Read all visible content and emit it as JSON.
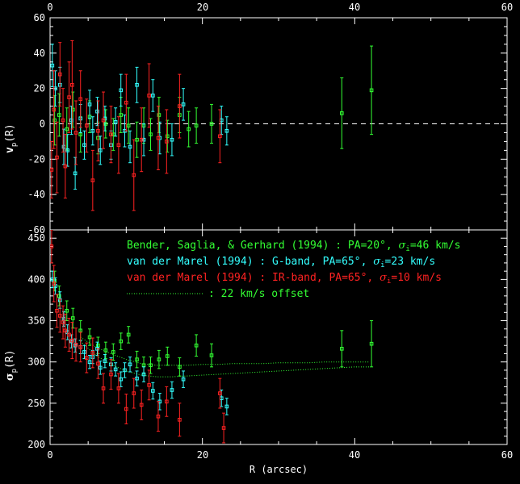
{
  "xlabel": "R (arcsec)",
  "top_xticks": [
    "0",
    "20",
    "40",
    "60"
  ],
  "bottom_xticks": [
    "0",
    "20",
    "40",
    "60"
  ],
  "colors": {
    "green": "#33ff33",
    "cyan": "#33ffff",
    "red": "#ff2222",
    "frame": "#ffffff"
  },
  "chart_data": [
    {
      "type": "scatter",
      "name": "velocity",
      "ylabel_main": "v",
      "ylabel_sub": "p",
      "ylabel_tail": "(R)",
      "xlim": [
        0,
        60
      ],
      "ylim": [
        -60,
        60
      ],
      "yticks": [
        "-60",
        "-40",
        "-20",
        "0",
        "20",
        "40",
        "60"
      ],
      "zero_line": true,
      "series": [
        {
          "color": "green",
          "points": [
            {
              "x": 0.6,
              "y": 2,
              "e": 14
            },
            {
              "x": 1.2,
              "y": 5,
              "e": 12
            },
            {
              "x": 2.2,
              "y": -3,
              "e": 12
            },
            {
              "x": 3.0,
              "y": 8,
              "e": 10
            },
            {
              "x": 4.0,
              "y": -6,
              "e": 10
            },
            {
              "x": 5.2,
              "y": 4,
              "e": 9
            },
            {
              "x": 6.3,
              "y": -8,
              "e": 9
            },
            {
              "x": 7.3,
              "y": 0,
              "e": 8
            },
            {
              "x": 8.3,
              "y": -6,
              "e": 9
            },
            {
              "x": 9.3,
              "y": 5,
              "e": 10
            },
            {
              "x": 10.3,
              "y": -1,
              "e": 10
            },
            {
              "x": 11.4,
              "y": -9,
              "e": 10
            },
            {
              "x": 12.3,
              "y": -1,
              "e": 10
            },
            {
              "x": 13.2,
              "y": -6,
              "e": 9
            },
            {
              "x": 14.3,
              "y": 5,
              "e": 10
            },
            {
              "x": 15.4,
              "y": -7,
              "e": 9
            },
            {
              "x": 17.0,
              "y": 5,
              "e": 10
            },
            {
              "x": 18.2,
              "y": -3,
              "e": 10
            },
            {
              "x": 19.2,
              "y": -1,
              "e": 10
            },
            {
              "x": 21.2,
              "y": 0,
              "e": 11
            },
            {
              "x": 38.3,
              "y": 6,
              "e": 20
            },
            {
              "x": 42.2,
              "y": 19,
              "e": 25
            }
          ]
        },
        {
          "color": "cyan",
          "points": [
            {
              "x": 0.3,
              "y": 33,
              "e": 12
            },
            {
              "x": 0.7,
              "y": 20,
              "e": 10
            },
            {
              "x": 1.3,
              "y": 22,
              "e": 10
            },
            {
              "x": 1.8,
              "y": -13,
              "e": 10
            },
            {
              "x": 2.3,
              "y": -15,
              "e": 9
            },
            {
              "x": 2.8,
              "y": 2,
              "e": 8
            },
            {
              "x": 3.3,
              "y": -28,
              "e": 9
            },
            {
              "x": 4.0,
              "y": 3,
              "e": 8
            },
            {
              "x": 4.5,
              "y": -12,
              "e": 8
            },
            {
              "x": 5.2,
              "y": 11,
              "e": 8
            },
            {
              "x": 5.6,
              "y": -4,
              "e": 8
            },
            {
              "x": 6.2,
              "y": 7,
              "e": 8
            },
            {
              "x": 6.6,
              "y": -15,
              "e": 8
            },
            {
              "x": 7.2,
              "y": 3,
              "e": 7
            },
            {
              "x": 8.0,
              "y": -12,
              "e": 8
            },
            {
              "x": 8.6,
              "y": 1,
              "e": 8
            },
            {
              "x": 9.3,
              "y": 19,
              "e": 9
            },
            {
              "x": 9.8,
              "y": -4,
              "e": 9
            },
            {
              "x": 10.5,
              "y": -13,
              "e": 9
            },
            {
              "x": 11.4,
              "y": 22,
              "e": 10
            },
            {
              "x": 12.3,
              "y": -9,
              "e": 9
            },
            {
              "x": 13.5,
              "y": 16,
              "e": 9
            },
            {
              "x": 14.4,
              "y": -8,
              "e": 9
            },
            {
              "x": 16.0,
              "y": -9,
              "e": 9
            },
            {
              "x": 17.5,
              "y": 11,
              "e": 9
            },
            {
              "x": 22.5,
              "y": 2,
              "e": 8
            },
            {
              "x": 23.2,
              "y": -4,
              "e": 8
            }
          ]
        },
        {
          "color": "red",
          "points": [
            {
              "x": 0.2,
              "y": -26,
              "e": 16
            },
            {
              "x": 0.5,
              "y": 8,
              "e": 22
            },
            {
              "x": 0.9,
              "y": -19,
              "e": 20
            },
            {
              "x": 1.3,
              "y": 28,
              "e": 18
            },
            {
              "x": 1.7,
              "y": 2,
              "e": 18
            },
            {
              "x": 2.0,
              "y": -24,
              "e": 18
            },
            {
              "x": 2.5,
              "y": 15,
              "e": 20
            },
            {
              "x": 2.9,
              "y": 22,
              "e": 25
            },
            {
              "x": 3.4,
              "y": -5,
              "e": 18
            },
            {
              "x": 4.0,
              "y": 14,
              "e": 16
            },
            {
              "x": 4.8,
              "y": -1,
              "e": 15
            },
            {
              "x": 5.6,
              "y": -32,
              "e": 17
            },
            {
              "x": 6.3,
              "y": -4,
              "e": 17
            },
            {
              "x": 7.0,
              "y": 2,
              "e": 16
            },
            {
              "x": 8.0,
              "y": -6,
              "e": 16
            },
            {
              "x": 9.0,
              "y": -12,
              "e": 16
            },
            {
              "x": 10.0,
              "y": 12,
              "e": 16
            },
            {
              "x": 11.0,
              "y": -29,
              "e": 20
            },
            {
              "x": 12.0,
              "y": -9,
              "e": 18
            },
            {
              "x": 13.0,
              "y": 16,
              "e": 18
            },
            {
              "x": 14.2,
              "y": -8,
              "e": 18
            },
            {
              "x": 15.3,
              "y": -10,
              "e": 18
            },
            {
              "x": 17.0,
              "y": 10,
              "e": 18
            },
            {
              "x": 22.3,
              "y": -7,
              "e": 15
            }
          ]
        }
      ]
    },
    {
      "type": "scatter",
      "name": "dispersion",
      "ylabel_main": "σ",
      "ylabel_sub": "p",
      "ylabel_tail": "(R)",
      "xlim": [
        0,
        60
      ],
      "ylim": [
        200,
        460
      ],
      "yticks": [
        "200",
        "250",
        "300",
        "350",
        "400",
        "450"
      ],
      "legend": [
        {
          "color": "green",
          "text_before": "Bender, Saglia, & Gerhard (1994) : PA=20°, ",
          "sym": "σ",
          "sub": "i",
          "text_after": "=46 km/s"
        },
        {
          "color": "cyan",
          "text_before": "van der Marel (1994) : G-band, PA=65°, ",
          "sym": "σ",
          "sub": "i",
          "text_after": "=23 km/s"
        },
        {
          "color": "red",
          "text_before": "van der Marel (1994) : IR-band, PA=65°, ",
          "sym": "σ",
          "sub": "i",
          "text_after": "=10 km/s"
        },
        {
          "color": "green",
          "dotted": true,
          "text_before": ": 22 km/s offset",
          "sym": "",
          "sub": "",
          "text_after": ""
        }
      ],
      "model_curves": [
        {
          "color": "green",
          "x": [
            4,
            6,
            8,
            10,
            12,
            14,
            16,
            18,
            20,
            22,
            24,
            26,
            28,
            30,
            32,
            34,
            36,
            38,
            40,
            42
          ],
          "y": [
            330,
            318,
            310,
            303,
            298,
            296,
            296,
            296,
            297,
            297,
            298,
            298,
            298,
            299,
            299,
            299,
            300,
            300,
            300,
            300
          ]
        },
        {
          "color": "green",
          "x": [
            4,
            6,
            8,
            10,
            12,
            14,
            16,
            18,
            20,
            22,
            24,
            26,
            28,
            30,
            32,
            34,
            36,
            38,
            40,
            42
          ],
          "y": [
            325,
            308,
            297,
            289,
            284,
            282,
            282,
            283,
            284,
            285,
            286,
            287,
            288,
            289,
            290,
            291,
            292,
            293,
            294,
            294
          ]
        }
      ],
      "series": [
        {
          "color": "green",
          "points": [
            {
              "x": 0.6,
              "y": 398,
              "e": 12
            },
            {
              "x": 1.2,
              "y": 380,
              "e": 12
            },
            {
              "x": 2.2,
              "y": 362,
              "e": 12
            },
            {
              "x": 3.0,
              "y": 353,
              "e": 12
            },
            {
              "x": 4.0,
              "y": 338,
              "e": 12
            },
            {
              "x": 5.2,
              "y": 330,
              "e": 10
            },
            {
              "x": 6.3,
              "y": 320,
              "e": 10
            },
            {
              "x": 7.3,
              "y": 314,
              "e": 10
            },
            {
              "x": 8.3,
              "y": 312,
              "e": 10
            },
            {
              "x": 9.3,
              "y": 325,
              "e": 10
            },
            {
              "x": 10.3,
              "y": 333,
              "e": 10
            },
            {
              "x": 11.4,
              "y": 303,
              "e": 10
            },
            {
              "x": 12.3,
              "y": 296,
              "e": 10
            },
            {
              "x": 13.2,
              "y": 296,
              "e": 10
            },
            {
              "x": 14.3,
              "y": 303,
              "e": 11
            },
            {
              "x": 15.4,
              "y": 307,
              "e": 11
            },
            {
              "x": 17.0,
              "y": 294,
              "e": 11
            },
            {
              "x": 19.2,
              "y": 320,
              "e": 13
            },
            {
              "x": 21.2,
              "y": 308,
              "e": 14
            },
            {
              "x": 38.3,
              "y": 316,
              "e": 22
            },
            {
              "x": 42.2,
              "y": 322,
              "e": 28
            }
          ]
        },
        {
          "color": "cyan",
          "points": [
            {
              "x": 0.3,
              "y": 400,
              "e": 10
            },
            {
              "x": 0.7,
              "y": 392,
              "e": 10
            },
            {
              "x": 1.3,
              "y": 375,
              "e": 10
            },
            {
              "x": 1.8,
              "y": 352,
              "e": 9
            },
            {
              "x": 2.3,
              "y": 336,
              "e": 9
            },
            {
              "x": 2.8,
              "y": 325,
              "e": 8
            },
            {
              "x": 3.3,
              "y": 320,
              "e": 8
            },
            {
              "x": 4.0,
              "y": 318,
              "e": 8
            },
            {
              "x": 4.5,
              "y": 312,
              "e": 8
            },
            {
              "x": 5.2,
              "y": 300,
              "e": 8
            },
            {
              "x": 5.6,
              "y": 306,
              "e": 8
            },
            {
              "x": 6.2,
              "y": 316,
              "e": 8
            },
            {
              "x": 6.6,
              "y": 293,
              "e": 8
            },
            {
              "x": 7.2,
              "y": 301,
              "e": 8
            },
            {
              "x": 8.0,
              "y": 297,
              "e": 8
            },
            {
              "x": 8.6,
              "y": 291,
              "e": 8
            },
            {
              "x": 9.3,
              "y": 279,
              "e": 9
            },
            {
              "x": 9.8,
              "y": 290,
              "e": 9
            },
            {
              "x": 10.5,
              "y": 297,
              "e": 9
            },
            {
              "x": 11.4,
              "y": 280,
              "e": 9
            },
            {
              "x": 12.3,
              "y": 285,
              "e": 9
            },
            {
              "x": 13.5,
              "y": 265,
              "e": 10
            },
            {
              "x": 14.4,
              "y": 252,
              "e": 10
            },
            {
              "x": 16.0,
              "y": 266,
              "e": 10
            },
            {
              "x": 17.5,
              "y": 279,
              "e": 10
            },
            {
              "x": 22.5,
              "y": 256,
              "e": 10
            },
            {
              "x": 23.2,
              "y": 246,
              "e": 10
            }
          ]
        },
        {
          "color": "red",
          "points": [
            {
              "x": 0.2,
              "y": 440,
              "e": 20
            },
            {
              "x": 0.5,
              "y": 395,
              "e": 22
            },
            {
              "x": 0.9,
              "y": 362,
              "e": 20
            },
            {
              "x": 1.3,
              "y": 356,
              "e": 20
            },
            {
              "x": 1.7,
              "y": 348,
              "e": 20
            },
            {
              "x": 2.0,
              "y": 338,
              "e": 20
            },
            {
              "x": 2.5,
              "y": 333,
              "e": 20
            },
            {
              "x": 2.9,
              "y": 326,
              "e": 22
            },
            {
              "x": 3.4,
              "y": 321,
              "e": 20
            },
            {
              "x": 4.0,
              "y": 318,
              "e": 18
            },
            {
              "x": 4.8,
              "y": 305,
              "e": 18
            },
            {
              "x": 5.6,
              "y": 311,
              "e": 18
            },
            {
              "x": 6.3,
              "y": 298,
              "e": 18
            },
            {
              "x": 7.0,
              "y": 268,
              "e": 18
            },
            {
              "x": 8.0,
              "y": 285,
              "e": 18
            },
            {
              "x": 9.0,
              "y": 268,
              "e": 18
            },
            {
              "x": 10.0,
              "y": 243,
              "e": 18
            },
            {
              "x": 11.0,
              "y": 262,
              "e": 18
            },
            {
              "x": 12.0,
              "y": 248,
              "e": 18
            },
            {
              "x": 13.0,
              "y": 272,
              "e": 18
            },
            {
              "x": 14.2,
              "y": 234,
              "e": 18
            },
            {
              "x": 15.3,
              "y": 252,
              "e": 18
            },
            {
              "x": 17.0,
              "y": 230,
              "e": 20
            },
            {
              "x": 22.3,
              "y": 262,
              "e": 18
            },
            {
              "x": 22.8,
              "y": 220,
              "e": 18
            }
          ]
        }
      ]
    }
  ]
}
